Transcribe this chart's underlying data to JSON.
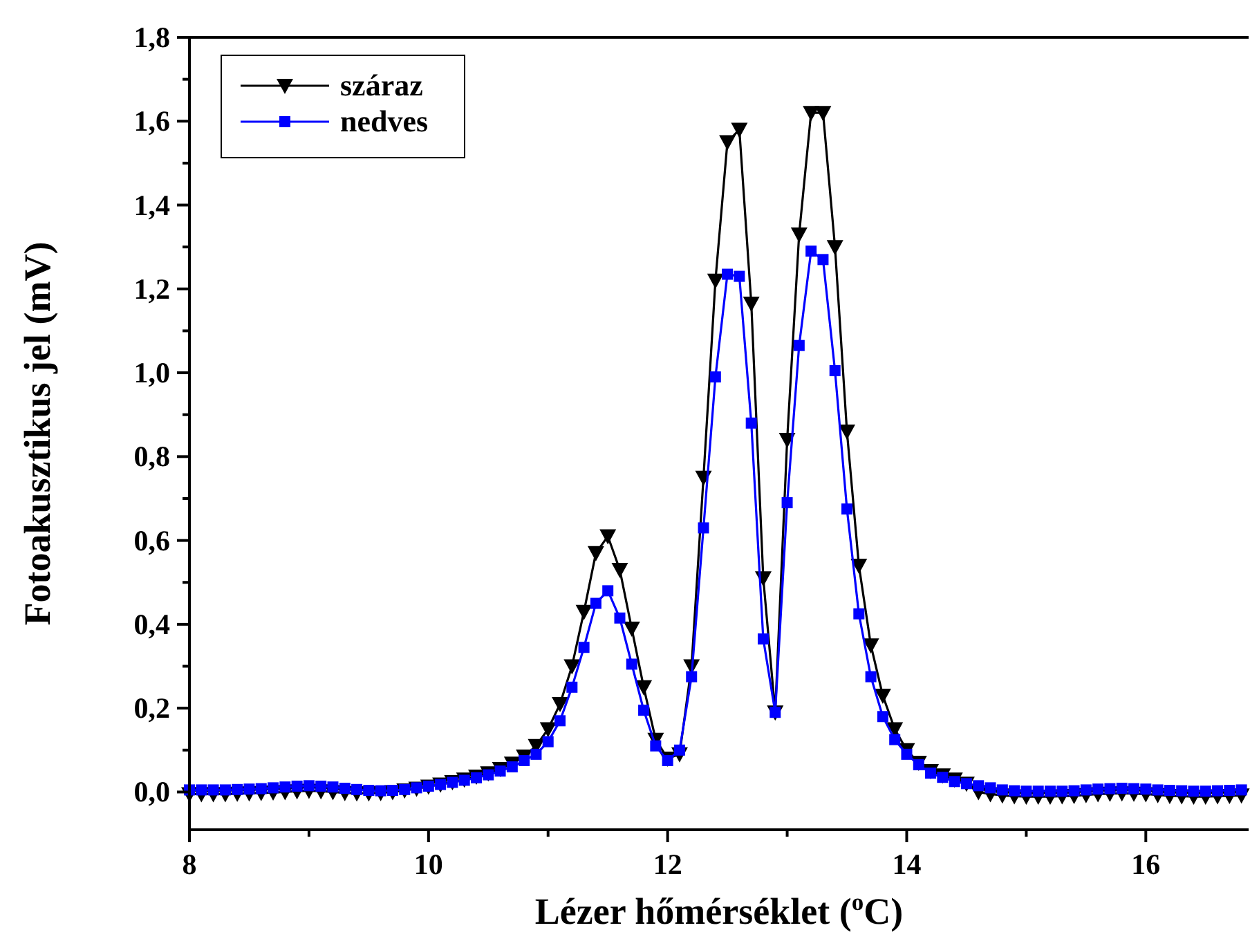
{
  "chart_data": {
    "type": "line",
    "xlabel": "Lézer hőmérséklet ($^{o}$C)",
    "ylabel": "Fotoakusztikus jel (mV)",
    "x": [
      8.0,
      8.1,
      8.2,
      8.3,
      8.4,
      8.5,
      8.6,
      8.7,
      8.8,
      8.9,
      9.0,
      9.1,
      9.2,
      9.3,
      9.4,
      9.5,
      9.6,
      9.7,
      9.8,
      9.9,
      10.0,
      10.1,
      10.2,
      10.3,
      10.4,
      10.5,
      10.6,
      10.7,
      10.8,
      10.9,
      11.0,
      11.1,
      11.2,
      11.3,
      11.4,
      11.5,
      11.6,
      11.7,
      11.8,
      11.9,
      12.0,
      12.1,
      12.2,
      12.3,
      12.4,
      12.5,
      12.6,
      12.7,
      12.8,
      12.9,
      13.0,
      13.1,
      13.2,
      13.3,
      13.4,
      13.5,
      13.6,
      13.7,
      13.8,
      13.9,
      14.0,
      14.1,
      14.2,
      14.3,
      14.4,
      14.5,
      14.6,
      14.7,
      14.8,
      14.9,
      15.0,
      15.1,
      15.2,
      15.3,
      15.4,
      15.5,
      15.6,
      15.7,
      15.8,
      15.9,
      16.0,
      16.1,
      16.2,
      16.3,
      16.4,
      16.5,
      16.6,
      16.7,
      16.8
    ],
    "series": [
      {
        "name": "száraz",
        "color": "#000000",
        "marker": "triangle-down",
        "values": [
          -0.005,
          -0.005,
          -0.005,
          -0.005,
          -0.004,
          -0.003,
          -0.002,
          -0.001,
          0,
          0.002,
          0.003,
          0.002,
          0,
          -0.002,
          -0.003,
          -0.003,
          -0.002,
          0,
          0.004,
          0.008,
          0.013,
          0.018,
          0.024,
          0.03,
          0.037,
          0.045,
          0.055,
          0.068,
          0.085,
          0.11,
          0.15,
          0.21,
          0.3,
          0.43,
          0.57,
          0.61,
          0.53,
          0.39,
          0.25,
          0.125,
          0.08,
          0.09,
          0.3,
          0.75,
          1.22,
          1.55,
          1.58,
          1.165,
          0.51,
          0.19,
          0.84,
          1.33,
          1.62,
          1.62,
          1.3,
          0.86,
          0.54,
          0.35,
          0.23,
          0.15,
          0.1,
          0.07,
          0.05,
          0.04,
          0.03,
          0.02,
          0,
          -0.005,
          -0.008,
          -0.01,
          -0.011,
          -0.011,
          -0.011,
          -0.01,
          -0.009,
          -0.007,
          -0.005,
          -0.004,
          -0.003,
          -0.004,
          -0.005,
          -0.007,
          -0.009,
          -0.01,
          -0.011,
          -0.011,
          -0.01,
          -0.009,
          -0.008
        ]
      },
      {
        "name": "nedves",
        "color": "#0000ff",
        "marker": "square",
        "values": [
          0.005,
          0.005,
          0.005,
          0.005,
          0.006,
          0.007,
          0.008,
          0.01,
          0.012,
          0.014,
          0.015,
          0.014,
          0.012,
          0.009,
          0.006,
          0.004,
          0.003,
          0.004,
          0.006,
          0.01,
          0.014,
          0.018,
          0.023,
          0.028,
          0.034,
          0.041,
          0.05,
          0.06,
          0.075,
          0.09,
          0.12,
          0.17,
          0.25,
          0.345,
          0.45,
          0.48,
          0.415,
          0.305,
          0.195,
          0.11,
          0.075,
          0.1,
          0.275,
          0.63,
          0.99,
          1.235,
          1.23,
          0.88,
          0.365,
          0.19,
          0.69,
          1.065,
          1.29,
          1.27,
          1.005,
          0.675,
          0.425,
          0.275,
          0.18,
          0.125,
          0.09,
          0.065,
          0.045,
          0.035,
          0.025,
          0.02,
          0.015,
          0.01,
          0.005,
          0.003,
          0.002,
          0.002,
          0.002,
          0.002,
          0.003,
          0.005,
          0.007,
          0.008,
          0.009,
          0.008,
          0.007,
          0.005,
          0.004,
          0.003,
          0.002,
          0.002,
          0.003,
          0.004,
          0.005
        ]
      }
    ],
    "xlim": [
      8,
      16.86
    ],
    "xticks": [
      8,
      {
        "value": 9,
        "label": null
      },
      10,
      {
        "value": 11,
        "label": null
      },
      12,
      {
        "value": 13,
        "label": null
      },
      14,
      {
        "value": 15,
        "label": null
      },
      16
    ],
    "ylim": [
      -0.09,
      1.8
    ],
    "yticks": [
      {
        "value": 0,
        "label": "0,0"
      },
      {
        "value": 0.1,
        "label": null
      },
      {
        "value": 0.2,
        "label": "0,2"
      },
      {
        "value": 0.3,
        "label": null
      },
      {
        "value": 0.4,
        "label": "0,4"
      },
      {
        "value": 0.5,
        "label": null
      },
      {
        "value": 0.6,
        "label": "0,6"
      },
      {
        "value": 0.7,
        "label": null
      },
      {
        "value": 0.8,
        "label": "0,8"
      },
      {
        "value": 0.9,
        "label": null
      },
      {
        "value": 1.0,
        "label": "1,0"
      },
      {
        "value": 1.1,
        "label": null
      },
      {
        "value": 1.2,
        "label": "1,2"
      },
      {
        "value": 1.3,
        "label": null
      },
      {
        "value": 1.4,
        "label": "1,4"
      },
      {
        "value": 1.5,
        "label": null
      },
      {
        "value": 1.6,
        "label": "1,6"
      },
      {
        "value": 1.7,
        "label": null
      },
      {
        "value": 1.8,
        "label": "1,8"
      }
    ],
    "grid": false,
    "legend": "top left",
    "line_style": "solid"
  }
}
